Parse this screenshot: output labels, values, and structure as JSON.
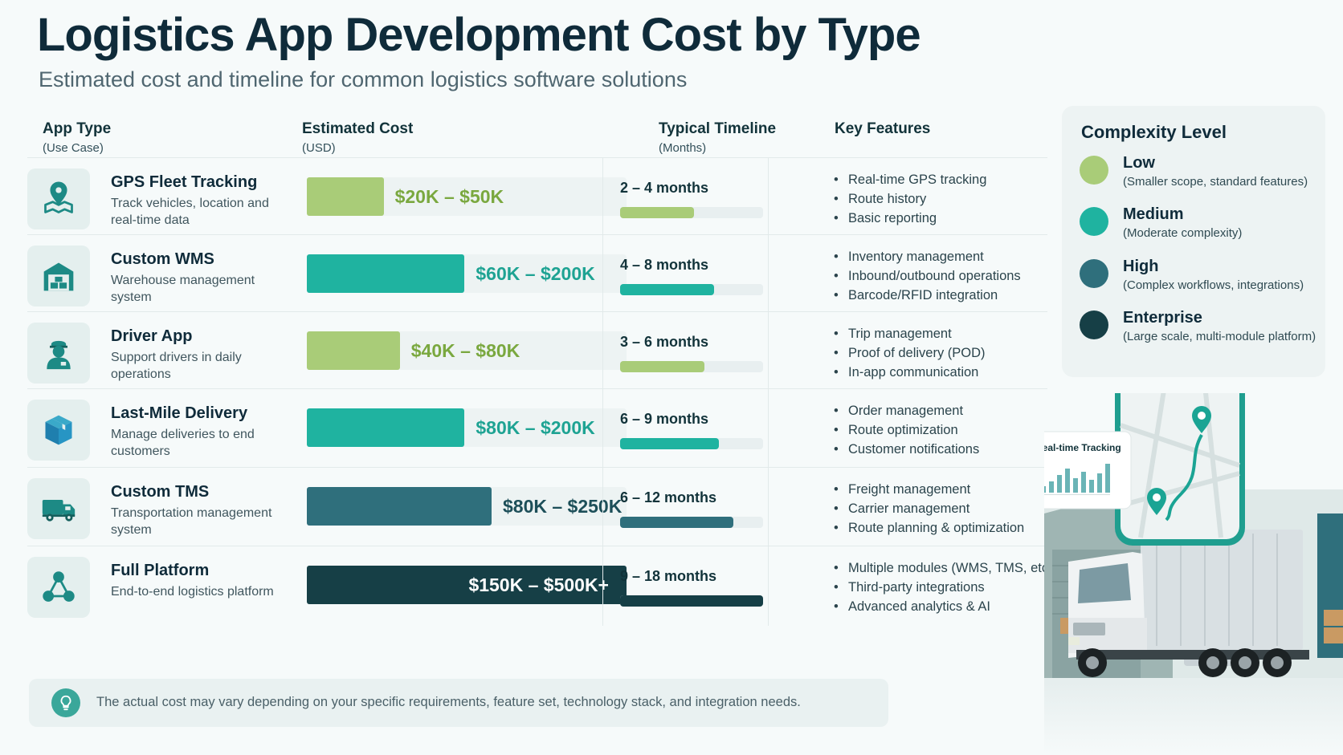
{
  "title": "Logistics App Development Cost by Type",
  "subtitle": "Estimated cost and timeline for common logistics software solutions",
  "columns": {
    "app_type": {
      "label": "App Type",
      "sub": "(Use Case)"
    },
    "cost": {
      "label": "Estimated Cost",
      "sub": "(USD)"
    },
    "timeline": {
      "label": "Typical Timeline",
      "sub": "(Months)"
    },
    "features": {
      "label": "Key Features"
    }
  },
  "rows": [
    {
      "icon": "map-pin-icon",
      "name": "GPS Fleet Tracking",
      "desc": "Track vehicles, location and real-time data",
      "cost_label": "$20K – $50K",
      "timeline_label": "2 – 4 months",
      "features": [
        "Real-time GPS tracking",
        "Route history",
        "Basic reporting"
      ]
    },
    {
      "icon": "warehouse-icon",
      "name": "Custom WMS",
      "desc": "Warehouse management system",
      "cost_label": "$60K – $200K",
      "timeline_label": "4 – 8 months",
      "features": [
        "Inventory management",
        "Inbound/outbound operations",
        "Barcode/RFID integration"
      ]
    },
    {
      "icon": "driver-icon",
      "name": "Driver App",
      "desc": "Support drivers in daily operations",
      "cost_label": "$40K – $80K",
      "timeline_label": "3 – 6 months",
      "features": [
        "Trip management",
        "Proof of delivery (POD)",
        "In-app communication"
      ]
    },
    {
      "icon": "package-icon",
      "name": "Last-Mile Delivery",
      "desc": "Manage deliveries to end customers",
      "cost_label": "$80K – $200K",
      "timeline_label": "6 – 9 months",
      "features": [
        "Order management",
        "Route optimization",
        "Customer notifications"
      ]
    },
    {
      "icon": "truck-icon",
      "name": "Custom TMS",
      "desc": "Transportation management system",
      "cost_label": "$80K – $250K",
      "timeline_label": "6 – 12 months",
      "features": [
        "Freight management",
        "Carrier management",
        "Route planning & optimization"
      ]
    },
    {
      "icon": "network-icon",
      "name": "Full Platform",
      "desc": "End-to-end logistics platform",
      "cost_label": "$150K – $500K+",
      "timeline_label": "9 – 18 months",
      "features": [
        "Multiple modules (WMS, TMS, etc.)",
        "Third-party integrations",
        "Advanced analytics & AI"
      ]
    }
  ],
  "legend": {
    "title": "Complexity Level",
    "items": [
      {
        "name": "Low",
        "desc": "(Smaller scope, standard features)",
        "color": "#a9cc78"
      },
      {
        "name": "Medium",
        "desc": "(Moderate complexity)",
        "color": "#1fb3a0"
      },
      {
        "name": "High",
        "desc": "(Complex workflows, integrations)",
        "color": "#2f6f7c"
      },
      {
        "name": "Enterprise",
        "desc": "(Large scale, multi-module platform)",
        "color": "#163f46"
      }
    ]
  },
  "note": "The actual cost may vary depending on your specific requirements, feature set, technology stack, and integration needs.",
  "illustration": {
    "card_title": "Real-time Tracking"
  },
  "chart_data": {
    "type": "bar",
    "categories": [
      "GPS Fleet Tracking",
      "Custom WMS",
      "Driver App",
      "Last-Mile Delivery",
      "Custom TMS",
      "Full Platform"
    ],
    "series": [
      {
        "name": "Estimated Cost",
        "min_usd_k": [
          20,
          60,
          40,
          80,
          80,
          150
        ],
        "max_usd_k": [
          50,
          200,
          80,
          200,
          250,
          500
        ]
      },
      {
        "name": "Typical Timeline",
        "min_months": [
          2,
          4,
          3,
          6,
          6,
          9
        ],
        "max_months": [
          4,
          8,
          6,
          9,
          12,
          18
        ]
      }
    ],
    "complexity": [
      "Low",
      "Medium",
      "Low",
      "Medium",
      "High",
      "Enterprise"
    ],
    "cost_scale_max_k": 500,
    "timeline_scale_max_months": 18
  }
}
